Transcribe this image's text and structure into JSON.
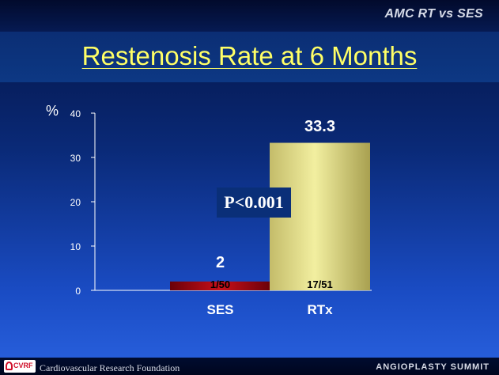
{
  "header": {
    "corner_title": "AMC RT vs SES"
  },
  "title": "Restenosis Rate at 6 Months",
  "annotation": {
    "p_value": "P<0.001"
  },
  "footer": {
    "logo_text": "CVRF",
    "organization": "Cardiovascular Research Foundation",
    "event": "ANGIOPLASTY SUMMIT"
  },
  "colors": {
    "title": "#ffff66",
    "ses_bar": "#c8101a",
    "rtx_bar": "#f2efa0"
  },
  "chart_data": {
    "type": "bar",
    "title": "Restenosis Rate at 6 Months",
    "ylabel": "%",
    "xlabel": "",
    "ylim": [
      0,
      40
    ],
    "yticks": [
      0,
      10,
      20,
      30,
      40
    ],
    "categories": [
      "SES",
      "RTx"
    ],
    "values": [
      2,
      33.3
    ],
    "value_labels": [
      "2",
      "33.3"
    ],
    "counts": [
      "1/50",
      "17/51"
    ],
    "grid": false,
    "legend": "none"
  }
}
